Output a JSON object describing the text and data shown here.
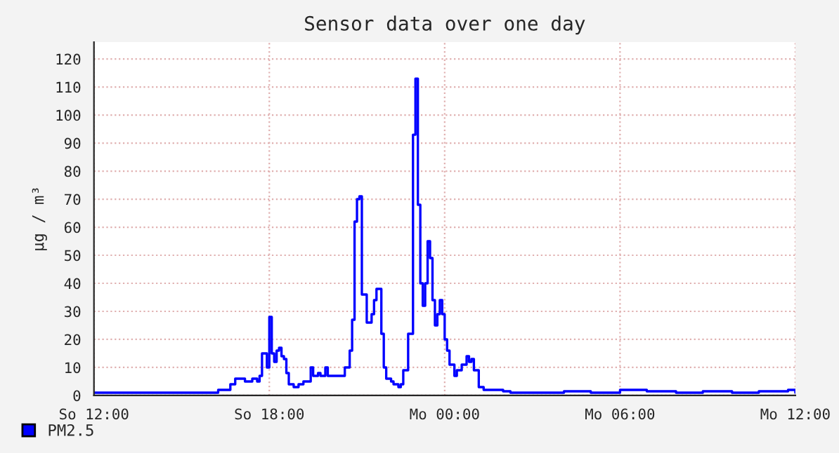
{
  "chart_data": {
    "type": "step",
    "title": "Sensor data over one day",
    "ylabel": "µg / m³",
    "categories": [
      "So 12:00",
      null,
      null,
      null,
      null,
      null,
      null,
      null,
      null,
      null,
      null,
      null,
      null,
      null,
      null,
      null,
      null,
      null,
      null,
      null,
      null,
      null,
      null,
      null,
      null,
      null,
      null,
      null,
      null,
      null,
      null,
      null,
      null,
      null,
      null,
      null,
      null,
      null,
      null,
      null,
      null,
      null,
      null,
      null,
      null,
      null,
      null,
      null,
      null,
      null,
      null,
      null,
      null,
      null,
      null,
      null,
      null,
      null,
      null,
      null,
      null,
      null,
      null,
      null,
      null,
      null,
      null,
      null,
      null,
      null,
      null,
      null,
      "So 18:00",
      null,
      null,
      null,
      null,
      null,
      null,
      null,
      null,
      null,
      null,
      null,
      null,
      null,
      null,
      null,
      null,
      null,
      null,
      null,
      null,
      null,
      null,
      null,
      null,
      null,
      null,
      null,
      null,
      null,
      null,
      null,
      null,
      null,
      null,
      null,
      null,
      null,
      null,
      null,
      null,
      null,
      null,
      null,
      null,
      null,
      null,
      null,
      null,
      null,
      null,
      null,
      null,
      null,
      null,
      null,
      null,
      null,
      null,
      null,
      null,
      null,
      null,
      null,
      null,
      null,
      null,
      null,
      null,
      null,
      null,
      null,
      "Mo 00:00",
      null,
      null,
      null,
      null,
      null,
      null,
      null,
      null,
      null,
      null,
      null,
      null,
      null,
      null,
      null,
      null,
      null,
      null,
      null,
      null,
      null,
      null,
      null,
      null,
      null,
      null,
      null,
      null,
      null,
      null,
      null,
      null,
      null,
      null,
      null,
      null,
      null,
      null,
      null,
      null,
      null,
      null,
      null,
      null,
      null,
      null,
      null,
      null,
      null,
      null,
      null,
      null,
      null,
      null,
      null,
      null,
      null,
      null,
      null,
      null,
      null,
      null,
      null,
      null,
      null,
      null,
      null,
      null,
      null,
      null,
      null,
      "Mo 06:00",
      null,
      null,
      null,
      null,
      null,
      null,
      null,
      null,
      null,
      null,
      null,
      null,
      null,
      null,
      null,
      null,
      null,
      null,
      null,
      null,
      null,
      null,
      null,
      null,
      null,
      null,
      null,
      null,
      null,
      null,
      null,
      null,
      null,
      null,
      null,
      null,
      null,
      null,
      null,
      null,
      null,
      null,
      null,
      null,
      null,
      null,
      null,
      null,
      null,
      null,
      null,
      null,
      null,
      null,
      null,
      null,
      null,
      null,
      null,
      null,
      null,
      null,
      null,
      null,
      null,
      null,
      null,
      null,
      null,
      null,
      null,
      "Mo 12:00"
    ],
    "series": [
      {
        "name": "PM2.5",
        "color": "#0000ff",
        "values": [
          1,
          1,
          1,
          1,
          1,
          1,
          1,
          1,
          1,
          1,
          1,
          1,
          1,
          1,
          1,
          1,
          1,
          1,
          1,
          1,
          1,
          1,
          1,
          1,
          1,
          1,
          1,
          1,
          1,
          1,
          1,
          1,
          1,
          1,
          1,
          1,
          1,
          1,
          1,
          1,
          1,
          1,
          1,
          1,
          1,
          1,
          1,
          1,
          1,
          1,
          1,
          2,
          2,
          2,
          2,
          2,
          4,
          4,
          6,
          6,
          6,
          6,
          5,
          5,
          5,
          6,
          6,
          5,
          7,
          15,
          15,
          10,
          28,
          15,
          12,
          16,
          17,
          14,
          13,
          8,
          4,
          4,
          3,
          3,
          4,
          4,
          5,
          5,
          5,
          10,
          7,
          7,
          8,
          7,
          7,
          10,
          7,
          7,
          7,
          7,
          7,
          7,
          7,
          10,
          10,
          16,
          27,
          62,
          70,
          71,
          36,
          36,
          26,
          26,
          29,
          34,
          38,
          38,
          22,
          10,
          6,
          6,
          5,
          4,
          4,
          3,
          4,
          9,
          9,
          22,
          22,
          93,
          113,
          68,
          40,
          32,
          40,
          55,
          49,
          34,
          25,
          29,
          34,
          29,
          20,
          16,
          11,
          11,
          7,
          9,
          9,
          11,
          11,
          14,
          12,
          13,
          9,
          9,
          3,
          3,
          2,
          2,
          2,
          2,
          2,
          2,
          2,
          2,
          1.5,
          1.5,
          1.5,
          1,
          1,
          1,
          1,
          1,
          1,
          1,
          1,
          1,
          1,
          1,
          1,
          1,
          1,
          1,
          1,
          1,
          1,
          1,
          1,
          1,
          1,
          1.5,
          1.5,
          1.5,
          1.5,
          1.5,
          1.5,
          1.5,
          1.5,
          1.5,
          1.5,
          1.5,
          1,
          1,
          1,
          1,
          1,
          1,
          1,
          1,
          1,
          1,
          1,
          1,
          2,
          2,
          2,
          2,
          2,
          2,
          2,
          2,
          2,
          2,
          2,
          1.5,
          1.5,
          1.5,
          1.5,
          1.5,
          1.5,
          1.5,
          1.5,
          1.5,
          1.5,
          1.5,
          1.5,
          1,
          1,
          1,
          1,
          1,
          1,
          1,
          1,
          1,
          1,
          1,
          1.5,
          1.5,
          1.5,
          1.5,
          1.5,
          1.5,
          1.5,
          1.5,
          1.5,
          1.5,
          1.5,
          1.5,
          1,
          1,
          1,
          1,
          1,
          1,
          1,
          1,
          1,
          1,
          1,
          1.5,
          1.5,
          1.5,
          1.5,
          1.5,
          1.5,
          1.5,
          1.5,
          1.5,
          1.5,
          1.5,
          1.5,
          2,
          2,
          2,
          1
        ]
      }
    ],
    "ylim": [
      0,
      126
    ],
    "yticks": [
      0,
      10,
      20,
      30,
      40,
      50,
      60,
      70,
      80,
      90,
      100,
      110,
      120
    ],
    "grid": true,
    "legend": "bottom left",
    "line_style": "solid",
    "marker": "none"
  }
}
